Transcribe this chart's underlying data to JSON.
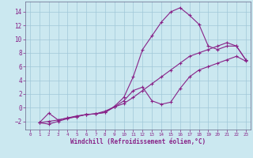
{
  "background_color": "#cbe8f0",
  "grid_color": "#a0c8d8",
  "line_color": "#882288",
  "xlabel": "Windchill (Refroidissement éolien,°C)",
  "xlabel_color": "#882288",
  "tick_color": "#882288",
  "xlim": [
    -0.5,
    23.5
  ],
  "ylim": [
    -3.2,
    15.5
  ],
  "yticks": [
    -2,
    0,
    2,
    4,
    6,
    8,
    10,
    12,
    14
  ],
  "xticks": [
    0,
    1,
    2,
    3,
    4,
    5,
    6,
    7,
    8,
    9,
    10,
    11,
    12,
    13,
    14,
    15,
    16,
    17,
    18,
    19,
    20,
    21,
    22,
    23
  ],
  "line1_x": [
    1,
    2,
    3,
    4,
    5,
    6,
    7,
    8,
    9,
    10,
    11,
    12,
    13,
    14,
    15,
    16,
    17,
    18,
    19,
    20,
    21,
    22,
    23
  ],
  "line1_y": [
    -2.2,
    -2.4,
    -2.0,
    -1.6,
    -1.3,
    -1.0,
    -0.9,
    -0.7,
    0.2,
    1.5,
    4.5,
    8.5,
    10.5,
    12.5,
    14.0,
    14.6,
    13.5,
    12.2,
    9.0,
    8.5,
    9.0,
    9.0,
    7.0
  ],
  "line2_x": [
    1,
    2,
    3,
    4,
    5,
    6,
    7,
    8,
    9,
    10,
    11,
    12,
    13,
    14,
    15,
    16,
    17,
    18,
    19,
    20,
    21,
    22,
    23
  ],
  "line2_y": [
    -2.2,
    -0.8,
    -1.8,
    -1.5,
    -1.3,
    -1.0,
    -0.9,
    -0.7,
    0.1,
    1.0,
    2.5,
    3.0,
    1.0,
    0.5,
    0.8,
    2.8,
    4.5,
    5.5,
    6.0,
    6.5,
    7.0,
    7.5,
    6.8
  ],
  "line3_x": [
    1,
    2,
    3,
    4,
    5,
    6,
    7,
    8,
    9,
    10,
    11,
    12,
    13,
    14,
    15,
    16,
    17,
    18,
    19,
    20,
    21,
    22,
    23
  ],
  "line3_y": [
    -2.2,
    -2.0,
    -1.8,
    -1.5,
    -1.2,
    -1.0,
    -0.9,
    -0.5,
    0.1,
    0.6,
    1.5,
    2.5,
    3.5,
    4.5,
    5.5,
    6.5,
    7.5,
    8.0,
    8.5,
    9.0,
    9.5,
    9.0,
    7.0
  ]
}
